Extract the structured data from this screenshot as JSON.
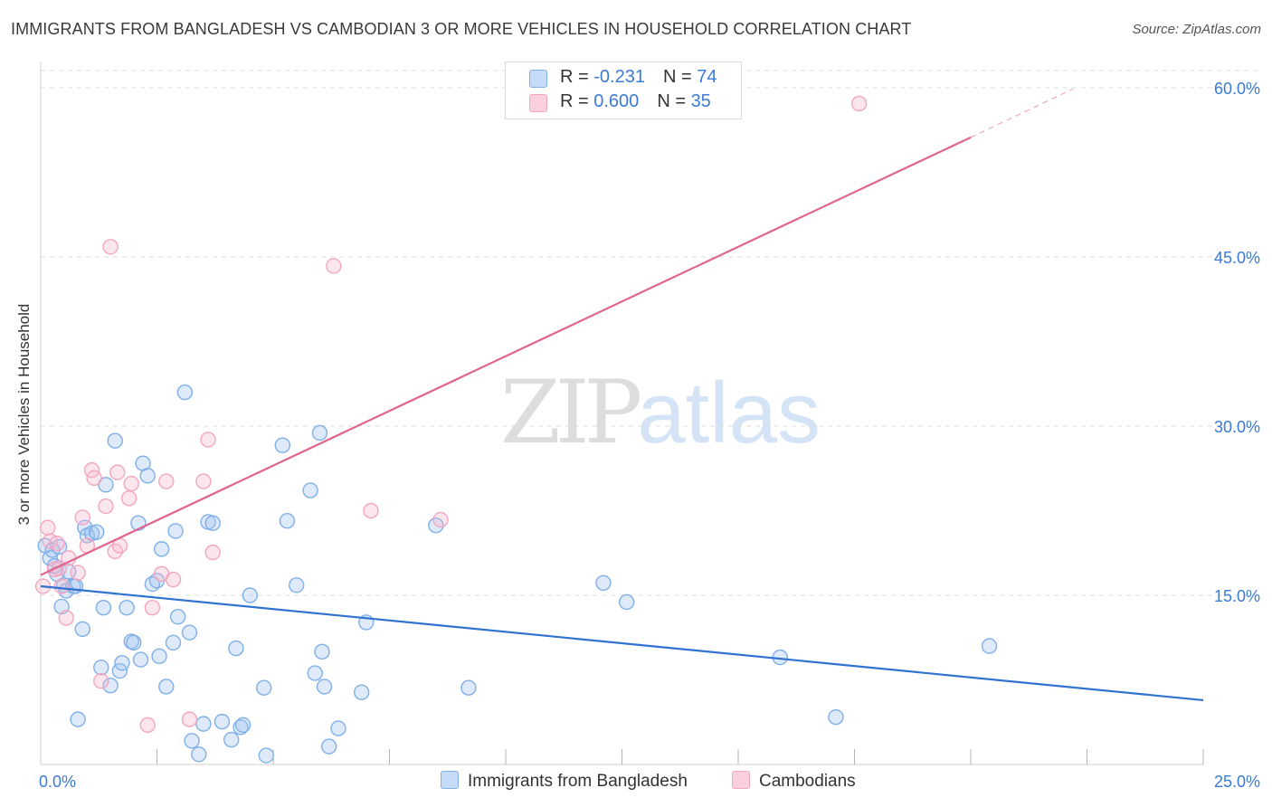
{
  "title": "IMMIGRANTS FROM BANGLADESH VS CAMBODIAN 3 OR MORE VEHICLES IN HOUSEHOLD CORRELATION CHART",
  "source": "Source: ZipAtlas.com",
  "watermark": {
    "zip": "ZIP",
    "atlas": "atlas"
  },
  "legend_top": [
    {
      "r_label": "R = ",
      "r_value": "-0.231",
      "n_label": "N = ",
      "n_value": "74"
    },
    {
      "r_label": "R = ",
      "r_value": "0.600",
      "n_label": "N = ",
      "n_value": "35"
    }
  ],
  "legend_bottom": [
    "Immigrants from Bangladesh",
    "Cambodians"
  ],
  "chart_data": {
    "type": "scatter",
    "title": "IMMIGRANTS FROM BANGLADESH VS CAMBODIAN 3 OR MORE VEHICLES IN HOUSEHOLD CORRELATION CHART",
    "xlabel": "",
    "ylabel": "3 or more Vehicles in Household",
    "xlim": [
      0,
      25
    ],
    "ylim": [
      0,
      62.5
    ],
    "x_tick_labels": [
      "0.0%",
      "25.0%"
    ],
    "y_ticks": [
      15,
      30,
      45,
      60
    ],
    "y_tick_labels": [
      "15.0%",
      "30.0%",
      "45.0%",
      "60.0%"
    ],
    "grid": true,
    "legend_position": "top-center",
    "series": [
      {
        "name": "Immigrants from Bangladesh",
        "color": "#7fb0e8",
        "line_color": "#2f72d0",
        "r": -0.231,
        "n": 74,
        "trend": {
          "x0": 0,
          "y0": 15.8,
          "x1": 25,
          "y1": 5.7
        },
        "points": [
          [
            0.1,
            19.4
          ],
          [
            0.2,
            18.3
          ],
          [
            0.25,
            19.0
          ],
          [
            0.3,
            17.6
          ],
          [
            0.35,
            16.9
          ],
          [
            0.4,
            19.3
          ],
          [
            0.45,
            14.0
          ],
          [
            0.5,
            15.9
          ],
          [
            0.55,
            15.4
          ],
          [
            0.6,
            17.1
          ],
          [
            0.7,
            15.8
          ],
          [
            0.75,
            15.8
          ],
          [
            0.8,
            4.0
          ],
          [
            0.9,
            12.0
          ],
          [
            0.95,
            21.0
          ],
          [
            1.0,
            20.3
          ],
          [
            1.1,
            20.5
          ],
          [
            1.2,
            20.6
          ],
          [
            1.3,
            8.6
          ],
          [
            1.35,
            13.9
          ],
          [
            1.4,
            24.8
          ],
          [
            1.5,
            7.0
          ],
          [
            1.6,
            28.7
          ],
          [
            1.7,
            8.3
          ],
          [
            1.75,
            9.0
          ],
          [
            1.85,
            13.9
          ],
          [
            1.95,
            10.9
          ],
          [
            2.0,
            10.8
          ],
          [
            2.1,
            21.4
          ],
          [
            2.15,
            9.3
          ],
          [
            2.2,
            26.7
          ],
          [
            2.3,
            25.6
          ],
          [
            2.4,
            16.0
          ],
          [
            2.5,
            16.3
          ],
          [
            2.55,
            9.6
          ],
          [
            2.6,
            19.1
          ],
          [
            2.7,
            6.9
          ],
          [
            2.85,
            10.8
          ],
          [
            2.9,
            20.7
          ],
          [
            2.95,
            13.1
          ],
          [
            3.1,
            33.0
          ],
          [
            3.2,
            11.7
          ],
          [
            3.25,
            2.1
          ],
          [
            3.4,
            0.9
          ],
          [
            3.5,
            3.6
          ],
          [
            3.6,
            21.5
          ],
          [
            3.7,
            21.4
          ],
          [
            3.9,
            3.8
          ],
          [
            4.1,
            2.2
          ],
          [
            4.2,
            10.3
          ],
          [
            4.3,
            3.3
          ],
          [
            4.35,
            3.5
          ],
          [
            4.5,
            15.0
          ],
          [
            4.8,
            6.8
          ],
          [
            4.85,
            0.8
          ],
          [
            5.2,
            28.3
          ],
          [
            5.3,
            21.6
          ],
          [
            5.5,
            15.9
          ],
          [
            5.8,
            24.3
          ],
          [
            5.9,
            8.1
          ],
          [
            6.0,
            29.4
          ],
          [
            6.05,
            10.0
          ],
          [
            6.1,
            6.9
          ],
          [
            6.2,
            1.6
          ],
          [
            6.4,
            3.2
          ],
          [
            6.9,
            6.4
          ],
          [
            7.0,
            12.6
          ],
          [
            8.5,
            21.2
          ],
          [
            9.2,
            6.8
          ],
          [
            12.1,
            16.1
          ],
          [
            12.6,
            14.4
          ],
          [
            15.9,
            9.5
          ],
          [
            17.1,
            4.2
          ],
          [
            20.4,
            10.5
          ]
        ]
      },
      {
        "name": "Cambodians",
        "color": "#f3a6bf",
        "line_color": "#e0648e",
        "r": 0.6,
        "n": 35,
        "trend": {
          "x0": 0,
          "y0": 16.8,
          "x1": 20.0,
          "y1": 55.6
        },
        "trend_dashed": {
          "x0": 20.0,
          "y0": 55.6,
          "x1": 22.2,
          "y1": 59.9
        },
        "points": [
          [
            0.05,
            15.8
          ],
          [
            0.15,
            21.0
          ],
          [
            0.2,
            19.8
          ],
          [
            0.3,
            17.3
          ],
          [
            0.35,
            19.6
          ],
          [
            0.4,
            17.4
          ],
          [
            0.45,
            15.8
          ],
          [
            0.55,
            13.0
          ],
          [
            0.6,
            18.3
          ],
          [
            0.8,
            17.0
          ],
          [
            0.9,
            21.9
          ],
          [
            1.0,
            19.4
          ],
          [
            1.1,
            26.1
          ],
          [
            1.15,
            25.4
          ],
          [
            1.3,
            7.4
          ],
          [
            1.4,
            22.9
          ],
          [
            1.5,
            45.9
          ],
          [
            1.6,
            18.9
          ],
          [
            1.65,
            25.9
          ],
          [
            1.7,
            19.4
          ],
          [
            1.9,
            23.6
          ],
          [
            1.95,
            24.9
          ],
          [
            2.3,
            3.5
          ],
          [
            2.4,
            13.9
          ],
          [
            2.6,
            16.9
          ],
          [
            2.7,
            25.1
          ],
          [
            2.85,
            16.4
          ],
          [
            3.2,
            4.0
          ],
          [
            3.5,
            25.1
          ],
          [
            3.6,
            28.8
          ],
          [
            3.7,
            18.8
          ],
          [
            6.3,
            44.2
          ],
          [
            7.1,
            22.5
          ],
          [
            8.6,
            21.7
          ],
          [
            17.6,
            58.6
          ]
        ]
      }
    ]
  }
}
